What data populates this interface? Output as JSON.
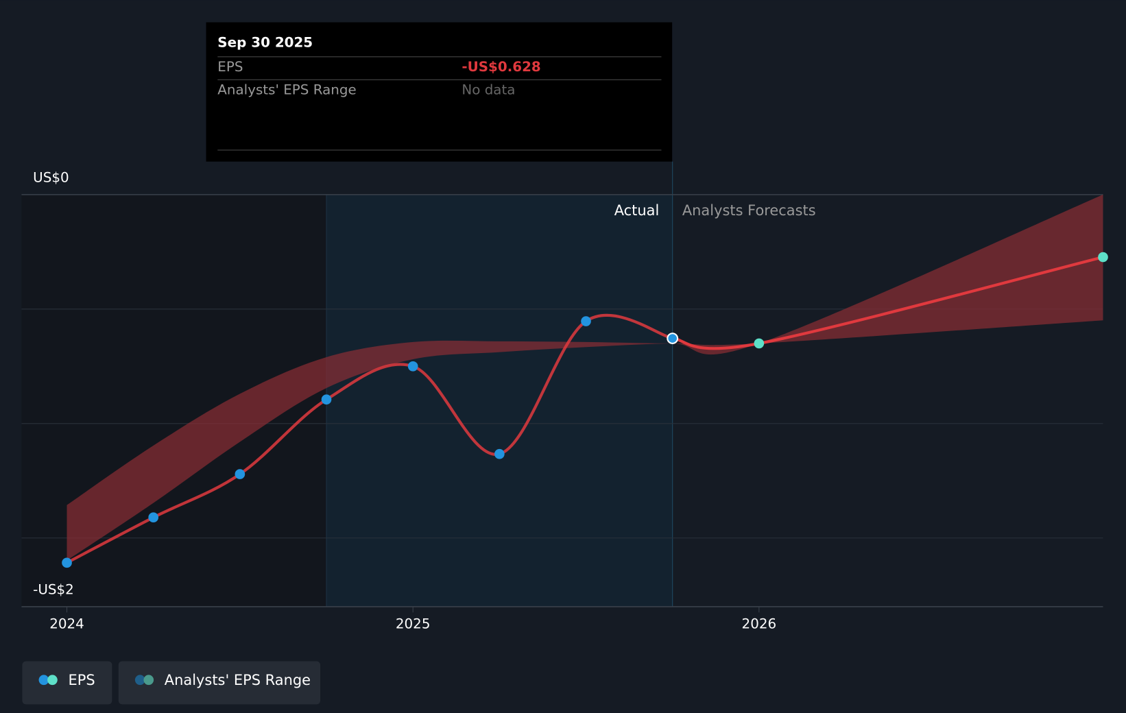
{
  "chart_data": {
    "type": "line",
    "tooltip": {
      "title": "Sep 30 2025",
      "rows": [
        {
          "label": "EPS",
          "value": "-US$0.628"
        },
        {
          "label": "Analysts' EPS Range",
          "value": "No data"
        }
      ]
    },
    "region_labels": [
      "Actual",
      "Analysts Forecasts"
    ],
    "xlim": [
      2023.869,
      2026.994
    ],
    "xticks": [
      2024,
      2025,
      2026
    ],
    "ylim": [
      -1.8,
      0
    ],
    "yticks": [
      {
        "value": 0,
        "label": "US$0"
      },
      {
        "value": -1.8,
        "label": "-US$2"
      }
    ],
    "grid_values": [
      -0.5,
      -1,
      -1.5
    ],
    "series": [
      {
        "name": "EPS",
        "color": "#2394df",
        "line_color": "#e0393e",
        "x": [
          2024.0,
          2024.25,
          2024.5,
          2024.75,
          2025.0,
          2025.25,
          2025.5,
          2025.75
        ],
        "values": [
          -1.608,
          -1.41,
          -1.221,
          -0.895,
          -0.75,
          -1.133,
          -0.553,
          -0.628
        ]
      },
      {
        "name": "EPS",
        "color": "#5ee0c8",
        "line_color": "#e0393e",
        "x": [
          2025.75,
          2026.0,
          2026.994
        ],
        "values": [
          -0.628,
          -0.65,
          -0.273
        ]
      },
      {
        "name": "Analysts' EPS Range",
        "color": "#8b2e35",
        "x": [
          2024.0,
          2024.25,
          2024.5,
          2024.75,
          2025.0,
          2025.25,
          2025.5,
          2025.75,
          2026.0,
          2026.994
        ],
        "high": [
          -1.356,
          -1.096,
          -0.87,
          -0.71,
          -0.644,
          -0.641,
          -0.644,
          -0.65,
          -0.65,
          0
        ],
        "low": [
          -1.598,
          -1.347,
          -1.08,
          -0.845,
          -0.719,
          -0.688,
          -0.666,
          -0.65,
          -0.65,
          -0.549
        ]
      }
    ]
  }
}
